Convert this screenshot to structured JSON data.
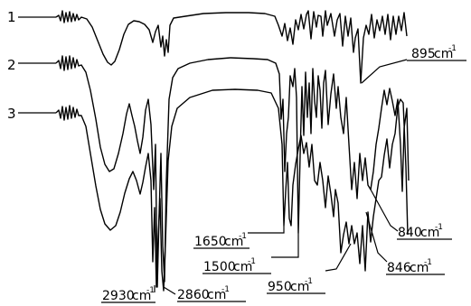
{
  "chart_data": {
    "type": "line",
    "title": "",
    "xlabel": "",
    "ylabel": "",
    "series": [
      {
        "name": "1"
      },
      {
        "name": "2"
      },
      {
        "name": "3"
      }
    ],
    "annotations": [
      {
        "text": "2930",
        "unit": "cm",
        "exp": "-1"
      },
      {
        "text": "2860",
        "unit": "cm",
        "exp": "-1"
      },
      {
        "text": "1650",
        "unit": "cm",
        "exp": "-1"
      },
      {
        "text": "1500",
        "unit": "cm",
        "exp": "-1"
      },
      {
        "text": "950",
        "unit": "cm",
        "exp": "-1"
      },
      {
        "text": "895",
        "unit": "cm",
        "exp": "-1"
      },
      {
        "text": "846",
        "unit": "cm",
        "exp": "-1"
      },
      {
        "text": "840",
        "unit": "cm",
        "exp": "-1"
      }
    ],
    "grid": false,
    "legend": "none"
  }
}
